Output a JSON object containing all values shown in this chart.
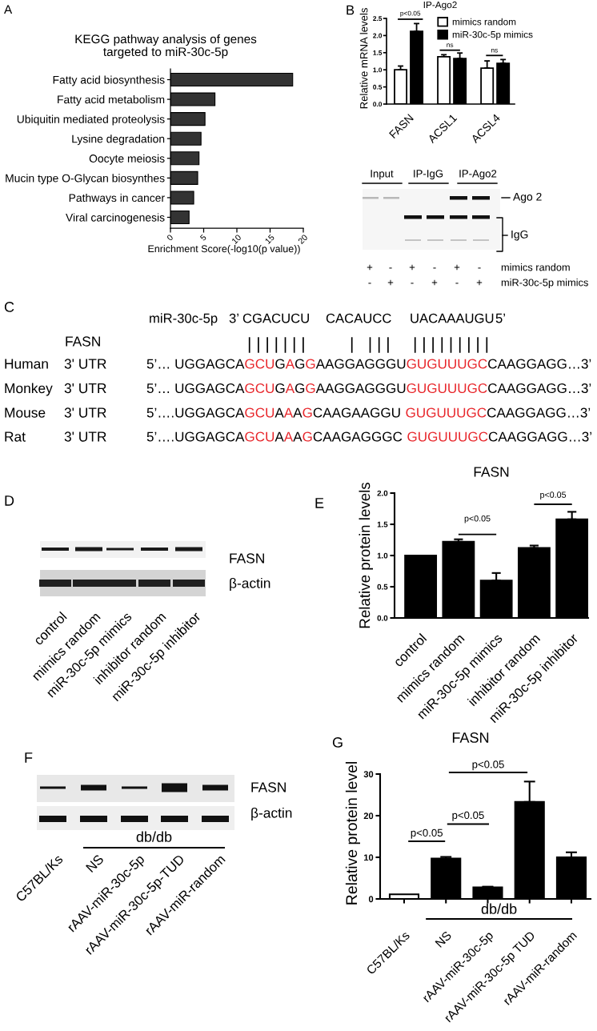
{
  "chart_data": [
    {
      "type": "bar",
      "orientation": "horizontal",
      "title": "KEGG pathway analysis of genes\ntargeted to miR-30c-5p",
      "xlabel": "Enrichment Score(-log10(p value))",
      "categories": [
        "Fatty acid biosynthesis",
        "Fatty acid metabolism",
        "Ubiquitin mediated proteolysis",
        "Lysine degradation",
        "Oocyte meiosis",
        "Mucin type O-Glycan biosynthes",
        "Pathways in cancer",
        "Viral carcinogenesis"
      ],
      "values": [
        18.4,
        6.7,
        5.2,
        4.6,
        4.3,
        4.1,
        3.5,
        2.8
      ],
      "color": "#333333",
      "xlim": [
        0,
        20
      ],
      "xticks": [
        0,
        5,
        10,
        15,
        20
      ],
      "annotations": [
        "A"
      ]
    },
    {
      "type": "bar",
      "title": "IP-Ago2",
      "ylabel": "Relative mRNA levels",
      "categories": [
        "FASN",
        "ACSL1",
        "ACSL4"
      ],
      "series": [
        {
          "name": "mimics random",
          "color": "#ffffff",
          "values": [
            1.0,
            1.38,
            1.05
          ],
          "errors": [
            [
              1.0,
              1.11
            ],
            [
              1.38,
              1.44
            ],
            [
              1.05,
              1.26
            ]
          ]
        },
        {
          "name": "miR-30c-5p mimics",
          "color": "#000000",
          "values": [
            2.12,
            1.33,
            1.19
          ],
          "errors": [
            [
              2.12,
              2.35
            ],
            [
              1.33,
              1.49
            ],
            [
              1.19,
              1.3
            ]
          ]
        }
      ],
      "ylim": [
        0,
        2.5
      ],
      "yticks": [
        {
          "value": 0,
          "label": "0.0"
        },
        {
          "value": 0.5,
          "label": "0.5"
        },
        {
          "value": 1.0,
          "label": "1.0"
        },
        {
          "value": 1.5,
          "label": "1.5"
        },
        {
          "value": 2.0,
          "label": "2.0"
        },
        {
          "value": 2.5,
          "label": "2.5"
        }
      ],
      "legend": "top right",
      "annotations": [
        "B",
        "p<0.05",
        "ns",
        "ns"
      ]
    },
    {
      "type": "other",
      "annotations": [
        "Input",
        "IP-IgG",
        "IP-Ago2",
        "Ago 2",
        "IgG",
        "+",
        "-",
        "+",
        "-",
        "+",
        "-",
        "-",
        "+",
        "-",
        "+",
        "-",
        "+",
        "mimics random",
        "miR-30c-5p mimics"
      ]
    },
    {
      "type": "other",
      "annotations": [
        "C",
        "miR-30c-5p",
        "3’ CGACUCU",
        "CACAUCC",
        "UACAAAUGU",
        "5’",
        "FASN",
        "| | | | | | |",
        "|   | | |",
        "| | | | | | | | |",
        "Human",
        "3' UTR",
        "5’… UGGAGCA",
        "GCU",
        "G",
        "A",
        "G",
        "G",
        "AAGGAGGGU",
        "GUGUUUGC",
        "CAAGGAGG…3’",
        "Monkey",
        "3' UTR",
        "5’… UGGAGCA",
        "GCU",
        "G",
        "A",
        "G",
        "G",
        "AAGGAGGGU",
        "GUGUUUGC",
        "CAAGGAGG…3’",
        "Mouse",
        "3' UTR",
        "5’….UGGAGCA",
        "GCU",
        "A",
        "A",
        "A",
        "G",
        "CAAGAAGGU",
        "GUGUUUGC",
        "CAAGGAGG…3’",
        "Rat",
        "3' UTR",
        "5’….UGGAGCA",
        "GCU",
        "A",
        "A",
        "A",
        "G",
        "CAAGAGGGC",
        "GUGUUUGC",
        "CAAGGAGG…3’"
      ],
      "colors": [
        "#000000",
        "#000000",
        "#000000",
        "#000000",
        "#000000",
        "#000000",
        "#000000",
        "#000000",
        "#000000",
        "#000000",
        "#000000",
        "#000000",
        "#000000",
        "#e8262b",
        "#000000",
        "#e8262b",
        "#000000",
        "#e8262b",
        "#000000",
        "#e8262b",
        "#000000",
        "#000000",
        "#000000",
        "#000000",
        "#e8262b",
        "#000000",
        "#e8262b",
        "#000000",
        "#e8262b",
        "#000000",
        "#e8262b",
        "#000000",
        "#000000",
        "#000000",
        "#000000",
        "#e8262b",
        "#000000",
        "#e8262b",
        "#000000",
        "#e8262b",
        "#000000",
        "#e8262b",
        "#000000",
        "#000000",
        "#000000",
        "#000000",
        "#e8262b",
        "#000000",
        "#e8262b",
        "#000000",
        "#e8262b",
        "#000000",
        "#e8262b",
        "#000000"
      ]
    },
    {
      "type": "other",
      "categories": [
        "control",
        "mimics random",
        "miR-30c-5p mimics",
        "inhibitor random",
        "miR-30c-5p inhibitor"
      ],
      "annotations": [
        "D",
        "FASN",
        "β-actin"
      ]
    },
    {
      "type": "bar",
      "title": "FASN",
      "ylabel": "Relative protein levels",
      "categories": [
        "control",
        "mimics random",
        "miR-30c-5p mimics",
        "inhibitor random",
        "miR-30c-5p inhibitor"
      ],
      "values": [
        1.0,
        1.22,
        0.6,
        1.12,
        1.58
      ],
      "errors": [
        null,
        [
          1.22,
          1.26
        ],
        [
          0.6,
          0.72
        ],
        [
          1.12,
          1.16
        ],
        [
          1.58,
          1.7
        ]
      ],
      "color": "#000000",
      "ylim": [
        0,
        2.0
      ],
      "yticks": [
        {
          "value": 0,
          "label": "0.0"
        },
        {
          "value": 0.5,
          "label": "0.5"
        },
        {
          "value": 1.0,
          "label": "1.0"
        },
        {
          "value": 1.5,
          "label": "1.5"
        },
        {
          "value": 2.0,
          "label": "2.0"
        }
      ],
      "annotations": [
        "E",
        "p<0.05",
        "p<0.05"
      ]
    },
    {
      "type": "other",
      "categories": [
        "C57BL/Ks",
        "NS",
        "rAAV-miR-30c-5p",
        "rAAV-miR-30c-5p-TUD",
        "rAAV-miR-random"
      ],
      "annotations": [
        "F",
        "FASN",
        "β-actin",
        "db/db"
      ]
    },
    {
      "type": "bar",
      "title": "FASN",
      "ylabel": "Relative protein level",
      "categories": [
        "C57BL/Ks",
        "NS",
        "rAAV-miR-30c-5p",
        "rAAV-miR-30c-5p TUD",
        "rAAV-miR-random"
      ],
      "values": [
        1.1,
        9.7,
        2.8,
        23.3,
        10.0
      ],
      "errors": [
        null,
        [
          9.7,
          10.1
        ],
        [
          2.8,
          2.95
        ],
        [
          23.3,
          28.2
        ],
        [
          10.0,
          11.2
        ]
      ],
      "colors": [
        "#ffffff",
        "#000000",
        "#000000",
        "#000000",
        "#000000"
      ],
      "ylim": [
        0,
        30
      ],
      "yticks": [
        0,
        10,
        20,
        30
      ],
      "annotations": [
        "G",
        "p<0.05",
        "p<0.05",
        "p<0.05",
        "db/db"
      ]
    }
  ]
}
